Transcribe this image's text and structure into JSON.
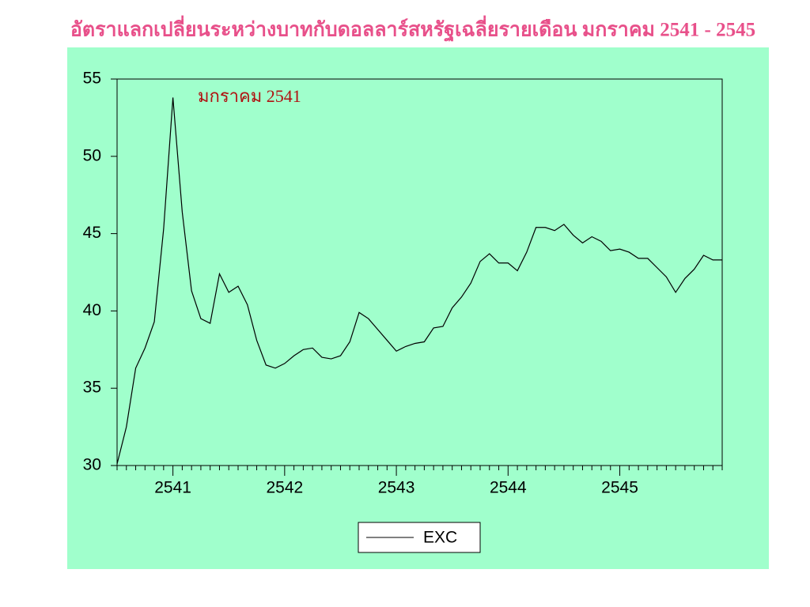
{
  "chart_data": {
    "type": "line",
    "title": "อัตราแลกเปลี่ยนระหว่างบาทกับดอลลาร์สหรัฐเฉลี่ยรายเดือน มกราคม 2541 - 2545",
    "annotation": "มกราคม 2541",
    "categories": [
      null,
      null,
      null,
      null,
      null,
      null,
      "2541",
      null,
      null,
      null,
      null,
      null,
      null,
      null,
      null,
      null,
      null,
      null,
      "2542",
      null,
      null,
      null,
      null,
      null,
      null,
      null,
      null,
      null,
      null,
      null,
      "2543",
      null,
      null,
      null,
      null,
      null,
      null,
      null,
      null,
      null,
      null,
      null,
      "2544",
      null,
      null,
      null,
      null,
      null,
      null,
      null,
      null,
      null,
      null,
      null,
      "2545",
      null,
      null,
      null,
      null,
      null,
      null,
      null,
      null,
      null,
      null,
      null
    ],
    "series": [
      {
        "name": "EXC",
        "color": "#000000",
        "values": [
          30.1,
          32.5,
          36.3,
          37.6,
          39.3,
          45.3,
          53.8,
          46.4,
          41.3,
          39.5,
          39.2,
          42.4,
          41.2,
          41.6,
          40.4,
          38.1,
          36.5,
          36.3,
          36.6,
          37.1,
          37.5,
          37.6,
          37.0,
          36.9,
          37.1,
          38.0,
          39.9,
          39.5,
          38.8,
          38.1,
          37.4,
          37.7,
          37.9,
          38.0,
          38.9,
          39.0,
          40.2,
          40.9,
          41.8,
          43.2,
          43.7,
          43.1,
          43.1,
          42.6,
          43.8,
          45.4,
          45.4,
          45.2,
          45.6,
          44.9,
          44.4,
          44.8,
          44.5,
          43.9,
          44.0,
          43.8,
          43.4,
          43.4,
          42.8,
          42.2,
          41.2,
          42.1,
          42.7,
          43.6,
          43.3,
          43.3
        ]
      }
    ],
    "ylim": [
      30,
      55
    ],
    "yticks": [
      30,
      35,
      40,
      45,
      50,
      55
    ],
    "legend": "bottom"
  }
}
